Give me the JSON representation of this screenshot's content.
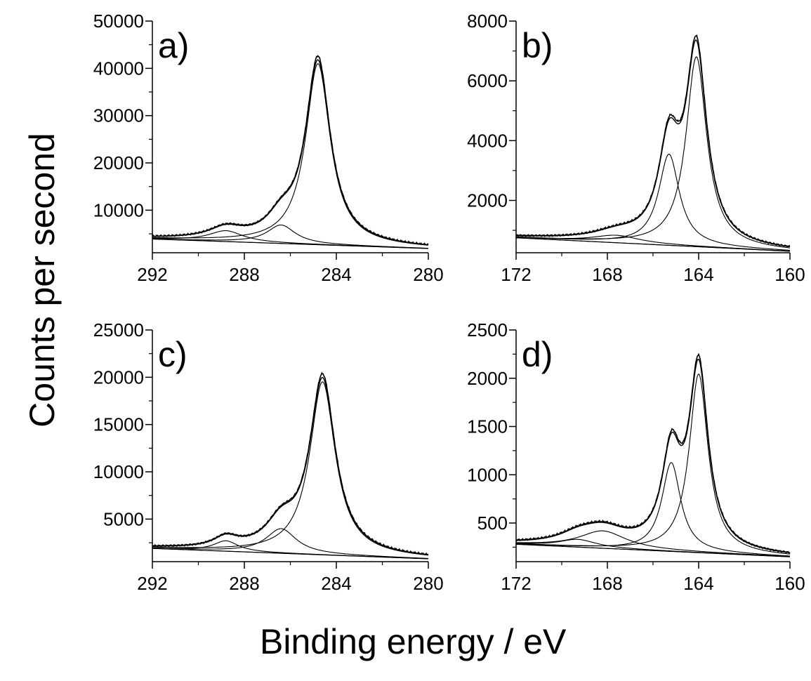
{
  "figure": {
    "ylabel": "Counts per second",
    "xlabel": "Binding energy / eV"
  },
  "chart_data": [
    {
      "panel": "a)",
      "type": "line",
      "xlim": [
        292,
        280
      ],
      "ylim": [
        1000,
        50000
      ],
      "xticks": [
        "292",
        "288",
        "284",
        "280"
      ],
      "yticks": [
        10000,
        20000,
        30000,
        40000,
        50000
      ],
      "ytick_labels": [
        "10000",
        "20000",
        "30000",
        "40000",
        "50000"
      ],
      "baseline": {
        "x": [
          292,
          280
        ],
        "y": [
          3900,
          1900
        ]
      },
      "peaks": [
        {
          "center": 284.8,
          "height": 38300,
          "fwhm": 1.3
        },
        {
          "center": 286.4,
          "height": 3900,
          "fwhm": 1.5
        },
        {
          "center": 288.8,
          "height": 2300,
          "fwhm": 1.8
        }
      ]
    },
    {
      "panel": "b)",
      "type": "line",
      "xlim": [
        172,
        160
      ],
      "ylim": [
        250,
        8000
      ],
      "xticks": [
        "172",
        "168",
        "164",
        "160"
      ],
      "yticks": [
        2000,
        4000,
        6000,
        8000
      ],
      "ytick_labels": [
        "2000",
        "4000",
        "6000",
        "8000"
      ],
      "baseline": {
        "x": [
          172,
          160
        ],
        "y": [
          750,
          300
        ]
      },
      "peaks": [
        {
          "center": 164.1,
          "height": 6350,
          "fwhm": 1.1
        },
        {
          "center": 165.3,
          "height": 3050,
          "fwhm": 1.1
        },
        {
          "center": 167.6,
          "height": 250,
          "fwhm": 2.5
        }
      ]
    },
    {
      "panel": "c)",
      "type": "line",
      "xlim": [
        292,
        280
      ],
      "ylim": [
        500,
        25000
      ],
      "xticks": [
        "292",
        "288",
        "284",
        "280"
      ],
      "yticks": [
        5000,
        10000,
        15000,
        20000,
        25000
      ],
      "ytick_labels": [
        "5000",
        "10000",
        "15000",
        "20000",
        "25000"
      ],
      "baseline": {
        "x": [
          292,
          280
        ],
        "y": [
          1900,
          800
        ]
      },
      "peaks": [
        {
          "center": 284.6,
          "height": 18300,
          "fwhm": 1.35
        },
        {
          "center": 286.4,
          "height": 2600,
          "fwhm": 1.6
        },
        {
          "center": 288.8,
          "height": 1100,
          "fwhm": 1.3
        }
      ]
    },
    {
      "panel": "d)",
      "type": "line",
      "xlim": [
        172,
        160
      ],
      "ylim": [
        100,
        2500
      ],
      "xticks": [
        "172",
        "168",
        "164",
        "160"
      ],
      "yticks": [
        500,
        1000,
        1500,
        2000,
        2500
      ],
      "ytick_labels": [
        "500",
        "1000",
        "1500",
        "2000",
        "2500"
      ],
      "baseline": {
        "x": [
          172,
          160
        ],
        "y": [
          280,
          150
        ]
      },
      "peaks": [
        {
          "center": 164.0,
          "height": 1850,
          "fwhm": 1.0
        },
        {
          "center": 165.2,
          "height": 920,
          "fwhm": 1.0
        },
        {
          "center": 168.2,
          "height": 180,
          "fwhm": 2.5
        },
        {
          "center": 169.3,
          "height": 80,
          "fwhm": 2.0
        }
      ]
    }
  ]
}
